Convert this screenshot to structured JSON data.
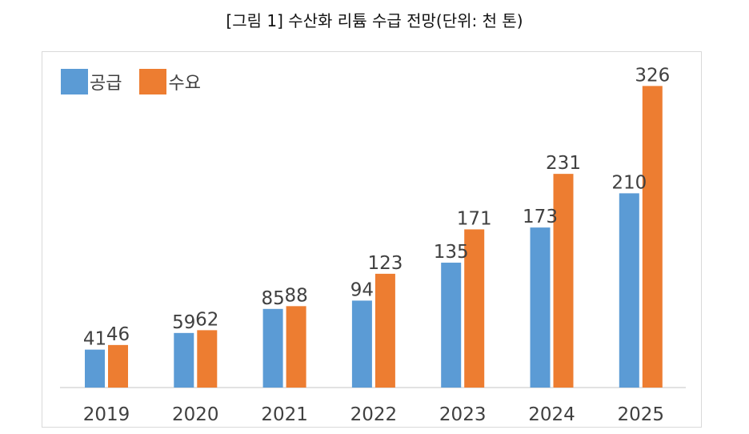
{
  "caption": "[그림 1] 수산화 리튬 수급 전망(단위: 천 톤)",
  "colors": {
    "supply": "#5b9bd5",
    "demand": "#ed7d31",
    "axis": "#d9d9d9",
    "label": "#404040"
  },
  "legend": {
    "supply": "공급",
    "demand": "수요"
  },
  "chart_data": {
    "type": "bar",
    "title": "",
    "xlabel": "",
    "ylabel": "",
    "ylim": [
      0,
      330
    ],
    "grid": false,
    "legend_position": "top-left",
    "categories": [
      "2019",
      "2020",
      "2021",
      "2022",
      "2023",
      "2024",
      "2025"
    ],
    "series": [
      {
        "name": "공급",
        "color": "#5b9bd5",
        "values": [
          41,
          59,
          85,
          94,
          135,
          173,
          210
        ]
      },
      {
        "name": "수요",
        "color": "#ed7d31",
        "values": [
          46,
          62,
          88,
          123,
          171,
          231,
          326
        ]
      }
    ]
  }
}
